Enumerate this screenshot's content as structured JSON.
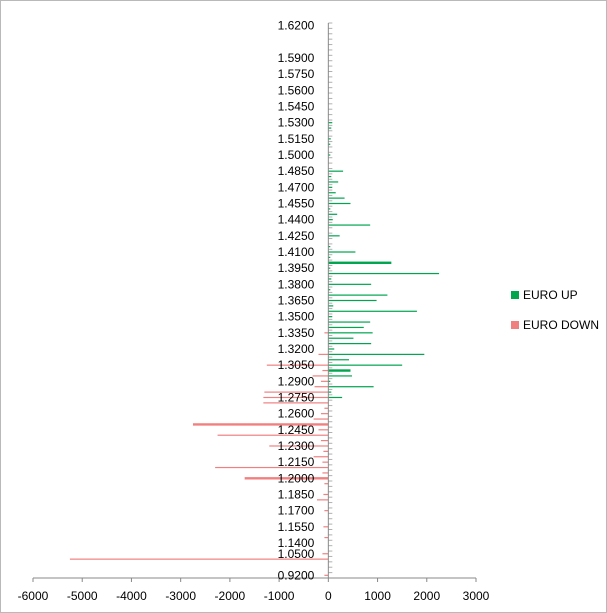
{
  "chart_data": {
    "type": "bar",
    "orientation": "horizontal",
    "title": "",
    "xlabel": "",
    "ylabel": "",
    "xlim": [
      -6000,
      3000
    ],
    "x_ticks": [
      -6000,
      -5000,
      -4000,
      -3000,
      -2000,
      -1000,
      0,
      1000,
      2000,
      3000
    ],
    "y_tick_labels": [
      "1.6200",
      "1.5900",
      "1.5750",
      "1.5600",
      "1.5450",
      "1.5300",
      "1.5150",
      "1.5000",
      "1.4850",
      "1.4700",
      "1.4550",
      "1.4400",
      "1.4250",
      "1.4100",
      "1.3950",
      "1.3800",
      "1.3650",
      "1.3500",
      "1.3350",
      "1.3200",
      "1.3050",
      "1.2900",
      "1.2750",
      "1.2600",
      "1.2450",
      "1.2300",
      "1.2150",
      "1.2000",
      "1.1850",
      "1.1700",
      "1.1550",
      "1.1400",
      "1.0500",
      "0.9200"
    ],
    "legend_position": "right",
    "series": [
      {
        "name": "EURO UP",
        "color": "#00a550",
        "points": [
          {
            "price": 1.53,
            "value": 80
          },
          {
            "price": 1.525,
            "value": 60
          },
          {
            "price": 1.515,
            "value": 50
          },
          {
            "price": 1.51,
            "value": 40
          },
          {
            "price": 1.5,
            "value": 40
          },
          {
            "price": 1.485,
            "value": 300
          },
          {
            "price": 1.48,
            "value": 60
          },
          {
            "price": 1.475,
            "value": 200
          },
          {
            "price": 1.47,
            "value": 80
          },
          {
            "price": 1.465,
            "value": 150
          },
          {
            "price": 1.46,
            "value": 330
          },
          {
            "price": 1.455,
            "value": 450
          },
          {
            "price": 1.45,
            "value": 40
          },
          {
            "price": 1.445,
            "value": 180
          },
          {
            "price": 1.44,
            "value": 90
          },
          {
            "price": 1.435,
            "value": 850
          },
          {
            "price": 1.425,
            "value": 230
          },
          {
            "price": 1.415,
            "value": 40
          },
          {
            "price": 1.41,
            "value": 550
          },
          {
            "price": 1.405,
            "value": 40
          },
          {
            "price": 1.4,
            "value": 1280
          },
          {
            "price": 1.395,
            "value": 40
          },
          {
            "price": 1.39,
            "value": 2250
          },
          {
            "price": 1.385,
            "value": 60
          },
          {
            "price": 1.38,
            "value": 870
          },
          {
            "price": 1.375,
            "value": 40
          },
          {
            "price": 1.37,
            "value": 1200
          },
          {
            "price": 1.365,
            "value": 980
          },
          {
            "price": 1.36,
            "value": 100
          },
          {
            "price": 1.355,
            "value": 1800
          },
          {
            "price": 1.35,
            "value": 80
          },
          {
            "price": 1.345,
            "value": 850
          },
          {
            "price": 1.34,
            "value": 720
          },
          {
            "price": 1.335,
            "value": 900
          },
          {
            "price": 1.33,
            "value": 510
          },
          {
            "price": 1.325,
            "value": 870
          },
          {
            "price": 1.32,
            "value": 120
          },
          {
            "price": 1.315,
            "value": 1950
          },
          {
            "price": 1.31,
            "value": 420
          },
          {
            "price": 1.305,
            "value": 1500
          },
          {
            "price": 1.3,
            "value": 450
          },
          {
            "price": 1.295,
            "value": 480
          },
          {
            "price": 1.29,
            "value": 40
          },
          {
            "price": 1.285,
            "value": 920
          },
          {
            "price": 1.28,
            "value": 60
          },
          {
            "price": 1.275,
            "value": 280
          }
        ]
      },
      {
        "name": "EURO DOWN",
        "color": "#f08080",
        "points": [
          {
            "price": 1.335,
            "value": -80
          },
          {
            "price": 1.315,
            "value": -200
          },
          {
            "price": 1.305,
            "value": -1250
          },
          {
            "price": 1.3,
            "value": -120
          },
          {
            "price": 1.295,
            "value": -320
          },
          {
            "price": 1.29,
            "value": -150
          },
          {
            "price": 1.285,
            "value": -280
          },
          {
            "price": 1.28,
            "value": -1300
          },
          {
            "price": 1.275,
            "value": -1320
          },
          {
            "price": 1.27,
            "value": -1320
          },
          {
            "price": 1.265,
            "value": -80
          },
          {
            "price": 1.26,
            "value": -150
          },
          {
            "price": 1.255,
            "value": -300
          },
          {
            "price": 1.25,
            "value": -2750
          },
          {
            "price": 1.245,
            "value": -200
          },
          {
            "price": 1.24,
            "value": -2250
          },
          {
            "price": 1.235,
            "value": -150
          },
          {
            "price": 1.23,
            "value": -1200
          },
          {
            "price": 1.225,
            "value": -100
          },
          {
            "price": 1.22,
            "value": -300
          },
          {
            "price": 1.215,
            "value": -120
          },
          {
            "price": 1.21,
            "value": -2300
          },
          {
            "price": 1.205,
            "value": -120
          },
          {
            "price": 1.2,
            "value": -1700
          },
          {
            "price": 1.195,
            "value": -80
          },
          {
            "price": 1.185,
            "value": -100
          },
          {
            "price": 1.18,
            "value": -230
          },
          {
            "price": 1.17,
            "value": -80
          },
          {
            "price": 1.155,
            "value": -100
          },
          {
            "price": 1.145,
            "value": -80
          },
          {
            "price": 1.05,
            "value": -120
          },
          {
            "price": 1.04,
            "value": -5250
          },
          {
            "price": 0.92,
            "value": -80
          }
        ]
      }
    ]
  }
}
